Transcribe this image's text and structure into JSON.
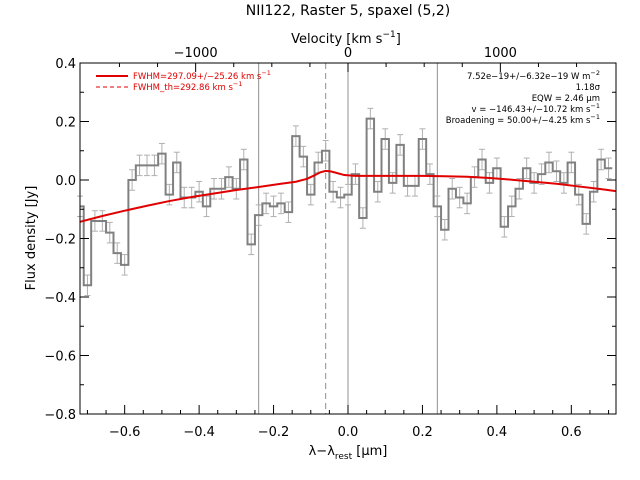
{
  "chart_data": {
    "type": "line",
    "title": "NII122, Raster 5, spaxel (5,2)",
    "xlabel": "λ−λrest [µm]",
    "xlabel_parts": {
      "main": "λ−λ",
      "sub": "rest",
      "unit": " [µm]"
    },
    "ylabel": "Flux density [Jy]",
    "top_axis_label": "Velocity [km s⁻¹]",
    "top_axis_label_parts": {
      "main": "Velocity [km s",
      "sup": "−1",
      "end": "]"
    },
    "xlim": [
      -0.72,
      0.72
    ],
    "ylim": [
      -0.8,
      0.4
    ],
    "x_ticks": [
      -0.6,
      -0.4,
      -0.2,
      0.0,
      0.2,
      0.4,
      0.6
    ],
    "x_tick_labels": [
      "−0.6",
      "−0.4",
      "−0.2",
      "0.0",
      "0.2",
      "0.4",
      "0.6"
    ],
    "y_ticks": [
      -0.8,
      -0.6,
      -0.4,
      -0.2,
      0.0,
      0.2,
      0.4
    ],
    "y_tick_labels": [
      "−0.8",
      "−0.6",
      "−0.4",
      "−0.2",
      "0.0",
      "0.2",
      "0.4"
    ],
    "top_ticks_velocity": [
      -1000,
      0,
      1000
    ],
    "top_tick_labels": [
      "−1000",
      "0",
      "1000"
    ],
    "km_per_um": 2443,
    "vertical_lines": [
      {
        "x": -0.24,
        "style": "solid"
      },
      {
        "x": 0.0,
        "style": "solid"
      },
      {
        "x": 0.24,
        "style": "solid"
      },
      {
        "x": -0.06,
        "style": "dashed"
      }
    ],
    "spectrum": {
      "name": "data",
      "x": [
        -0.72,
        -0.7,
        -0.68,
        -0.66,
        -0.64,
        -0.62,
        -0.6,
        -0.58,
        -0.56,
        -0.54,
        -0.52,
        -0.5,
        -0.48,
        -0.46,
        -0.44,
        -0.42,
        -0.4,
        -0.38,
        -0.36,
        -0.34,
        -0.32,
        -0.3,
        -0.28,
        -0.26,
        -0.24,
        -0.22,
        -0.2,
        -0.18,
        -0.16,
        -0.14,
        -0.12,
        -0.1,
        -0.08,
        -0.06,
        -0.04,
        -0.02,
        0.0,
        0.02,
        0.04,
        0.06,
        0.08,
        0.1,
        0.12,
        0.14,
        0.16,
        0.18,
        0.2,
        0.22,
        0.24,
        0.26,
        0.28,
        0.3,
        0.32,
        0.34,
        0.36,
        0.38,
        0.4,
        0.42,
        0.44,
        0.46,
        0.48,
        0.5,
        0.52,
        0.54,
        0.56,
        0.58,
        0.6,
        0.62,
        0.64,
        0.66,
        0.68,
        0.7
      ],
      "y": [
        -0.09,
        -0.36,
        -0.14,
        -0.14,
        -0.18,
        -0.25,
        -0.29,
        0.0,
        0.05,
        0.05,
        0.05,
        0.09,
        -0.05,
        0.06,
        -0.06,
        -0.06,
        -0.04,
        -0.09,
        -0.03,
        -0.03,
        0.01,
        -0.03,
        0.07,
        -0.22,
        -0.12,
        -0.08,
        -0.09,
        -0.08,
        -0.11,
        0.15,
        0.08,
        -0.05,
        0.06,
        0.1,
        -0.04,
        -0.06,
        -0.05,
        0.02,
        -0.13,
        0.21,
        -0.04,
        0.14,
        -0.01,
        0.12,
        -0.02,
        -0.02,
        0.14,
        0.02,
        -0.09,
        -0.17,
        -0.03,
        -0.06,
        -0.08,
        0.01,
        0.07,
        -0.01,
        0.04,
        -0.16,
        -0.09,
        -0.03,
        0.04,
        -0.01,
        0.02,
        0.06,
        0.03,
        -0.01,
        0.06,
        -0.05,
        -0.15,
        -0.04,
        0.07,
        0.04
      ],
      "err": 0.035
    },
    "fit_fwhm": {
      "name": "FWHM=297.09+/-25.26 km s⁻¹",
      "name_parts": {
        "main": "FWHM=297.09+/−25.26 km s",
        "sup": "−1"
      },
      "style": "solid",
      "color": "#e00000",
      "x": [
        -0.72,
        -0.66,
        -0.6,
        -0.54,
        -0.48,
        -0.42,
        -0.36,
        -0.3,
        -0.24,
        -0.18,
        -0.14,
        -0.11,
        -0.09,
        -0.075,
        -0.06,
        -0.045,
        -0.03,
        -0.01,
        0.02,
        0.08,
        0.14,
        0.2,
        0.26,
        0.32,
        0.38,
        0.44,
        0.5,
        0.56,
        0.62,
        0.68,
        0.72
      ],
      "y": [
        -0.143,
        -0.123,
        -0.105,
        -0.088,
        -0.072,
        -0.058,
        -0.046,
        -0.034,
        -0.024,
        -0.013,
        -0.006,
        0.004,
        0.016,
        0.026,
        0.031,
        0.029,
        0.024,
        0.017,
        0.014,
        0.014,
        0.014,
        0.014,
        0.013,
        0.011,
        0.007,
        0.001,
        -0.006,
        -0.013,
        -0.022,
        -0.031,
        -0.038
      ]
    },
    "fit_fwhm_th": {
      "name": "FWHM_th=292.86 km s⁻¹",
      "name_parts": {
        "main": "FWHM_th=292.86 km s",
        "sup": "−1"
      },
      "style": "dashed",
      "color": "#e00000",
      "x": [
        -0.72,
        -0.66,
        -0.6,
        -0.54,
        -0.48,
        -0.42,
        -0.36,
        -0.3,
        -0.24,
        -0.18,
        -0.14,
        -0.11,
        -0.09,
        -0.075,
        -0.06,
        -0.045,
        -0.03,
        -0.01,
        0.02,
        0.08,
        0.14,
        0.2,
        0.26,
        0.32,
        0.38,
        0.44,
        0.5,
        0.56,
        0.62,
        0.68,
        0.72
      ],
      "y": [
        -0.143,
        -0.123,
        -0.105,
        -0.088,
        -0.072,
        -0.058,
        -0.046,
        -0.034,
        -0.024,
        -0.013,
        -0.006,
        0.005,
        0.017,
        0.027,
        0.032,
        0.03,
        0.025,
        0.017,
        0.014,
        0.014,
        0.014,
        0.014,
        0.013,
        0.011,
        0.007,
        0.001,
        -0.006,
        -0.013,
        -0.022,
        -0.031,
        -0.038
      ]
    },
    "legend_placement": "top-left",
    "annotations": {
      "flux": {
        "main": "7.52e−19+/−6.32e−19 W m",
        "sup": "−2"
      },
      "sigma": {
        "main": "1.18σ"
      },
      "eqw": {
        "main": "EQW = 2.46 µm"
      },
      "velocity": {
        "main": "v = −146.43+/−10.72 km s",
        "sup": "−1"
      },
      "broadening": {
        "main": "Broadening = 50.00+/−4.25 km s",
        "sup": "−1"
      }
    },
    "colors": {
      "data": "#808080",
      "error": "#b0b0b0",
      "fit": "#e00000",
      "vlines": "#909090",
      "axes": "#000000"
    }
  }
}
